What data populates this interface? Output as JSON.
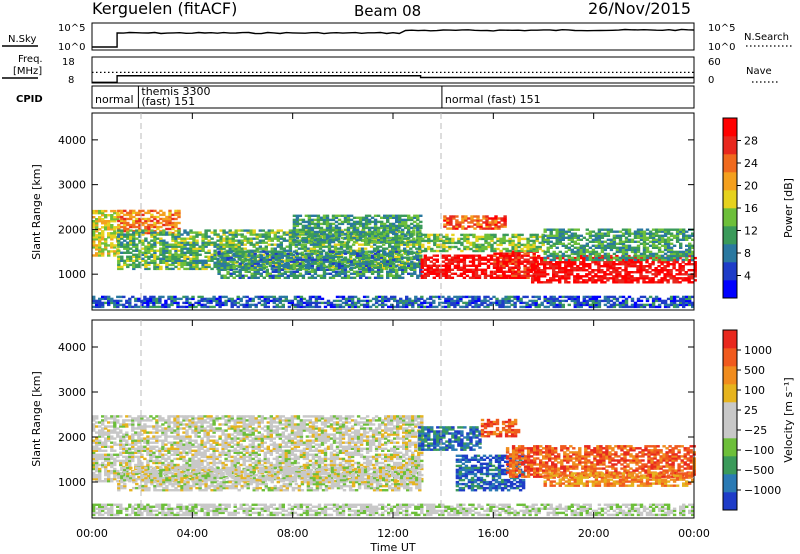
{
  "header": {
    "station": "Kerguelen (fitACF)",
    "beam": "Beam 08",
    "date": "26/Nov/2015"
  },
  "noise_panel": {
    "left_label": "N.Sky",
    "right_label": "N.Search",
    "left_ticks": [
      "10^5",
      "10^0"
    ],
    "right_ticks": [
      "10^5",
      "10^0"
    ]
  },
  "freq_panel": {
    "left_label_line1": "Freq.",
    "left_label_line2": "[MHz]",
    "right_label": "Nave",
    "left_ticks": [
      "18",
      "8"
    ],
    "right_ticks": [
      "60",
      "0"
    ],
    "freq_steps": [
      {
        "t": 0,
        "mhz": 8.3
      },
      {
        "t": 1.0,
        "mhz": 11.3
      },
      {
        "t": 13.1,
        "mhz": 10.5
      },
      {
        "t": 24.0,
        "mhz": 10.5
      }
    ],
    "nave_steps": [
      {
        "t": 0,
        "nave": 29
      },
      {
        "t": 24.0,
        "nave": 29
      }
    ]
  },
  "cpid": {
    "label": "CPID",
    "segments": [
      {
        "start": 0.0,
        "text": "normal"
      },
      {
        "start": 1.85,
        "text": "themis 3300"
      },
      {
        "start": 1.85,
        "text": "(fast) 151"
      },
      {
        "start": 13.95,
        "text": "normal (fast) 151"
      }
    ]
  },
  "time_axis": {
    "title": "Time UT",
    "ticks": [
      "00:00",
      "04:00",
      "08:00",
      "12:00",
      "16:00",
      "20:00",
      "00:00"
    ]
  },
  "chart_data": [
    {
      "type": "heatmap",
      "name": "power",
      "ylabel": "Slant Range [km]",
      "yticks": [
        "1000",
        "2000",
        "3000",
        "4000"
      ],
      "xlim": [
        0,
        24
      ],
      "ylim": [
        200,
        4600
      ],
      "colorbar": {
        "label": "Power [dB]",
        "ticks": [
          "4",
          "8",
          "12",
          "16",
          "20",
          "24",
          "28"
        ],
        "colors": [
          "#0000ff",
          "#1e3cc8",
          "#2a78a0",
          "#3a9a5a",
          "#6dbf3a",
          "#e6d21e",
          "#f4a01e",
          "#f06a1e",
          "#e8281e",
          "#ff0000"
        ]
      },
      "regions": [
        {
          "t0": 0.0,
          "t1": 1.0,
          "r0": 1400,
          "r1": 2400,
          "level": 0.55
        },
        {
          "t0": 1.0,
          "t1": 3.5,
          "r0": 1900,
          "r1": 2400,
          "level": 0.7
        },
        {
          "t0": 1.0,
          "t1": 13.1,
          "r0": 1100,
          "r1": 2000,
          "level": 0.4
        },
        {
          "t0": 5.0,
          "t1": 13.1,
          "r0": 900,
          "r1": 1500,
          "level": 0.3
        },
        {
          "t0": 8.0,
          "t1": 13.1,
          "r0": 1700,
          "r1": 2300,
          "level": 0.35
        },
        {
          "t0": 13.1,
          "t1": 17.0,
          "r0": 900,
          "r1": 1400,
          "level": 0.95
        },
        {
          "t0": 14.0,
          "t1": 16.5,
          "r0": 2000,
          "r1": 2300,
          "level": 0.8
        },
        {
          "t0": 16.0,
          "t1": 17.8,
          "r0": 900,
          "r1": 1500,
          "level": 0.9
        },
        {
          "t0": 17.5,
          "t1": 24.0,
          "r0": 800,
          "r1": 1400,
          "level": 0.95
        },
        {
          "t0": 13.0,
          "t1": 18.0,
          "r0": 1500,
          "r1": 1900,
          "level": 0.45
        },
        {
          "t0": 18.0,
          "t1": 24.0,
          "r0": 1300,
          "r1": 2000,
          "level": 0.35
        },
        {
          "t0": 0.0,
          "t1": 24.0,
          "r0": 250,
          "r1": 500,
          "level": 0.2
        }
      ]
    },
    {
      "type": "heatmap",
      "name": "velocity",
      "ylabel": "Slant Range [km]",
      "yticks": [
        "1000",
        "2000",
        "3000",
        "4000"
      ],
      "xlim": [
        0,
        24
      ],
      "ylim": [
        200,
        4600
      ],
      "colorbar": {
        "label": "Velocity [m s⁻¹]",
        "ticks": [
          "1000",
          "500",
          "100",
          "25",
          "−25",
          "−100",
          "−500",
          "−1000"
        ],
        "colors": [
          "#1e3cc8",
          "#2a7ab4",
          "#3a9a5a",
          "#6dbf3a",
          "#c8c8c8",
          "#c8c8c8",
          "#e6b41e",
          "#f08c1e",
          "#f05a1e",
          "#e8281e"
        ]
      },
      "regions": [
        {
          "t0": 0.0,
          "t1": 13.1,
          "r0": 1000,
          "r1": 2450,
          "level": 0.5
        },
        {
          "t0": 1.0,
          "t1": 13.1,
          "r0": 800,
          "r1": 1300,
          "level": 0.5
        },
        {
          "t0": 13.0,
          "t1": 15.5,
          "r0": 1700,
          "r1": 2200,
          "level": 0.15
        },
        {
          "t0": 14.5,
          "t1": 17.2,
          "r0": 800,
          "r1": 1600,
          "level": 0.1
        },
        {
          "t0": 15.5,
          "t1": 17.0,
          "r0": 2000,
          "r1": 2400,
          "level": 0.85
        },
        {
          "t0": 16.5,
          "t1": 24.0,
          "r0": 1100,
          "r1": 1800,
          "level": 0.85
        },
        {
          "t0": 18.0,
          "t1": 24.0,
          "r0": 900,
          "r1": 1200,
          "level": 0.75
        },
        {
          "t0": 0.0,
          "t1": 24.0,
          "r0": 250,
          "r1": 500,
          "level": 0.45
        }
      ]
    }
  ]
}
